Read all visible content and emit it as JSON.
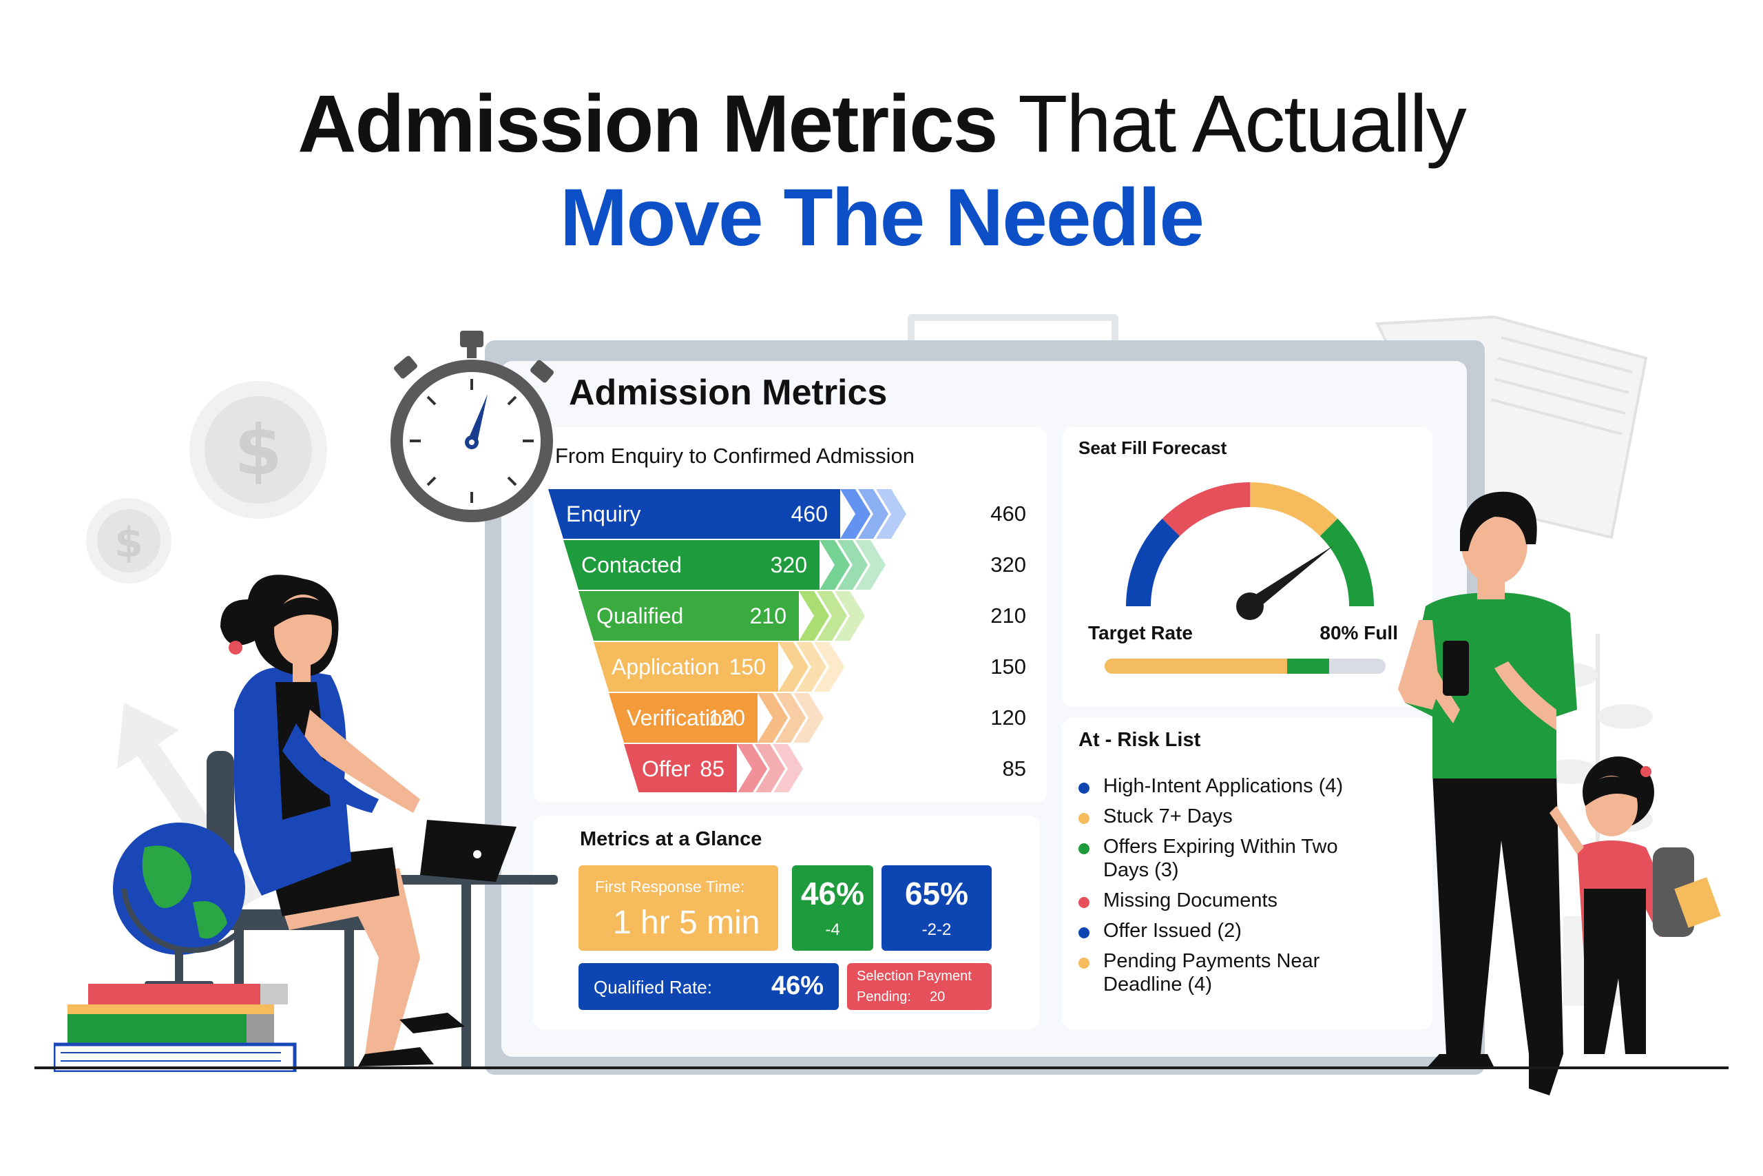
{
  "headline": {
    "line1_bold": "Admission Metrics",
    "line1_light": "That Actually",
    "line2": "Move The Needle"
  },
  "dashboard": {
    "title": "Admission Metrics",
    "funnel": {
      "subtitle": "From Enquiry to Confirmed Admission",
      "stages": [
        {
          "label": "Enquiry",
          "value": "460",
          "color": "#0d45b3"
        },
        {
          "label": "Contacted",
          "value": "320",
          "color": "#1e9b3d"
        },
        {
          "label": "Qualified",
          "value": "210",
          "color": "#3aab3f"
        },
        {
          "label": "Application",
          "value": "150",
          "color": "#f5bb5c"
        },
        {
          "label": "Verification",
          "value": "120",
          "color": "#f39a3a"
        },
        {
          "label": "Offer",
          "value": "85",
          "color": "#e5505a"
        }
      ]
    },
    "gauge": {
      "title": "Seat Fill Forecast",
      "target_label": "Target Rate",
      "full_label": "80% Full",
      "fill_fraction": 0.8,
      "target_fraction": 0.65,
      "colors": [
        "#0d45b3",
        "#e5505a",
        "#f5bb5c",
        "#1e9b3d"
      ]
    },
    "glance": {
      "title": "Metrics at a Glance",
      "first_response_label": "First Response Time:",
      "first_response_value": "1 hr 5 min",
      "card_a_value": "46%",
      "card_a_delta": "-4",
      "card_b_value": "65%",
      "card_b_delta": "-2-2",
      "qualified_label": "Qualified Rate:",
      "qualified_value": "46%",
      "selection_line1": "Selection Payment",
      "selection_line2": "Pending:",
      "selection_value": "20"
    },
    "risk": {
      "title": "At - Risk List",
      "items": [
        {
          "text": "High-Intent Applications (4)",
          "color": "#0d45b3"
        },
        {
          "text": "Stuck 7+ Days",
          "color": "#f5bb5c"
        },
        {
          "text": "Offers Expiring Within Two Days (3)",
          "color": "#1e9b3d"
        },
        {
          "text": "Missing Documents",
          "color": "#e5505a"
        },
        {
          "text": "Offer Issued (2)",
          "color": "#0d45b3"
        },
        {
          "text": "Pending Payments Near Deadline (4)",
          "color": "#f5bb5c"
        }
      ]
    }
  }
}
